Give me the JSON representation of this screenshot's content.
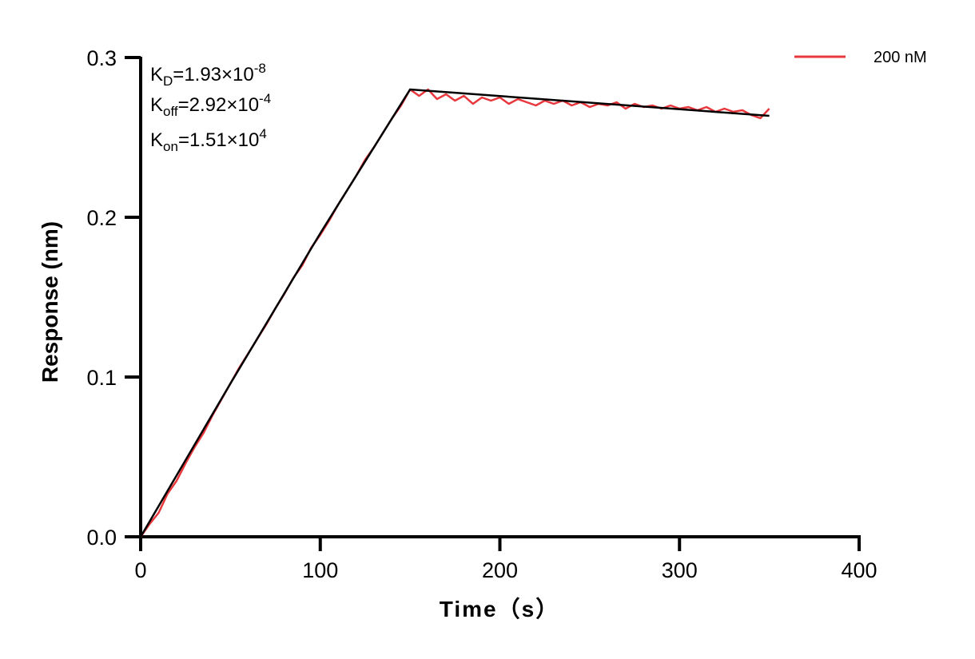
{
  "chart_data": {
    "type": "line",
    "xlabel": "Time（s）",
    "ylabel": "Response (nm)",
    "xlim": [
      0,
      400
    ],
    "ylim": [
      0,
      0.3
    ],
    "xticks": [
      0,
      100,
      200,
      300,
      400
    ],
    "xtick_labels": [
      "0",
      "100",
      "200",
      "300",
      "400"
    ],
    "yticks": [
      0,
      0.1,
      0.2,
      0.3
    ],
    "ytick_labels": [
      "0.0",
      "0.1",
      "0.2",
      "0.3"
    ],
    "grid": false,
    "legend_position": "top-right",
    "annotations": {
      "kd": {
        "main": "K",
        "sub": "D",
        "text": "=1.93×10",
        "exp": "-8"
      },
      "koff": {
        "main": "K",
        "sub": "off",
        "text": "=2.92×10",
        "exp": "-4"
      },
      "kon": {
        "main": "K",
        "sub": "on",
        "text": "=1.51×10",
        "exp": "4"
      }
    },
    "series": [
      {
        "name": "200 nM",
        "color": "#e8383d",
        "x": [
          0,
          5,
          10,
          15,
          20,
          25,
          30,
          35,
          40,
          45,
          50,
          55,
          60,
          65,
          70,
          75,
          80,
          85,
          90,
          95,
          100,
          105,
          110,
          115,
          120,
          125,
          130,
          135,
          140,
          145,
          150,
          155,
          160,
          165,
          170,
          175,
          180,
          185,
          190,
          195,
          200,
          205,
          210,
          215,
          220,
          225,
          230,
          235,
          240,
          245,
          250,
          255,
          260,
          265,
          270,
          275,
          280,
          285,
          290,
          295,
          300,
          305,
          310,
          315,
          320,
          325,
          330,
          335,
          340,
          345,
          350
        ],
        "y": [
          0.0,
          0.008,
          0.015,
          0.027,
          0.035,
          0.046,
          0.056,
          0.065,
          0.076,
          0.086,
          0.096,
          0.106,
          0.115,
          0.124,
          0.133,
          0.143,
          0.152,
          0.162,
          0.17,
          0.181,
          0.189,
          0.198,
          0.208,
          0.217,
          0.226,
          0.236,
          0.244,
          0.253,
          0.262,
          0.27,
          0.28,
          0.276,
          0.28,
          0.274,
          0.277,
          0.273,
          0.276,
          0.271,
          0.275,
          0.273,
          0.275,
          0.271,
          0.274,
          0.272,
          0.27,
          0.273,
          0.271,
          0.273,
          0.27,
          0.272,
          0.269,
          0.271,
          0.27,
          0.272,
          0.268,
          0.271,
          0.269,
          0.27,
          0.268,
          0.27,
          0.268,
          0.269,
          0.267,
          0.269,
          0.266,
          0.268,
          0.266,
          0.267,
          0.264,
          0.262,
          0.268
        ]
      },
      {
        "color": "#000000",
        "x": [
          0,
          50,
          100,
          150,
          350
        ],
        "y": [
          0.0,
          0.096,
          0.19,
          0.28,
          0.2635
        ]
      }
    ]
  }
}
